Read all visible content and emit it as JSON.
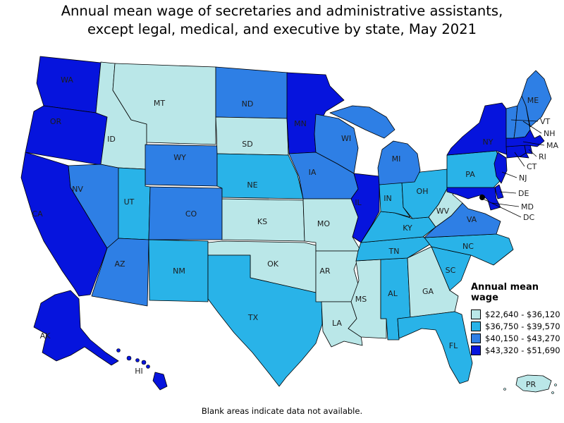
{
  "title": {
    "line1": "Annual mean wage of secretaries and administrative assistants,",
    "line2": "except legal, medical, and executive by state, May 2021"
  },
  "legend": {
    "title": "Annual mean wage",
    "classes": [
      {
        "label": "$22,640 - $36,120",
        "color": "#bae7e8"
      },
      {
        "label": "$36,750 - $39,570",
        "color": "#29b3e8"
      },
      {
        "label": "$40,150 - $43,270",
        "color": "#2e7fe5"
      },
      {
        "label": "$43,320 - $51,690",
        "color": "#0614dd"
      }
    ]
  },
  "footnote": "Blank areas indicate data not available.",
  "map": {
    "border_color": "#000000",
    "dc_marker_color": "#000000",
    "states": [
      {
        "abbr": "WA",
        "label": "WA",
        "category": 3
      },
      {
        "abbr": "OR",
        "label": "OR",
        "category": 3
      },
      {
        "abbr": "CA",
        "label": "CA",
        "category": 3
      },
      {
        "abbr": "NV",
        "label": "NV",
        "category": 2
      },
      {
        "abbr": "ID",
        "label": "ID",
        "category": 0
      },
      {
        "abbr": "MT",
        "label": "MT",
        "category": 0
      },
      {
        "abbr": "WY",
        "label": "WY",
        "category": 2
      },
      {
        "abbr": "UT",
        "label": "UT",
        "category": 1
      },
      {
        "abbr": "CO",
        "label": "CO",
        "category": 2
      },
      {
        "abbr": "AZ",
        "label": "AZ",
        "category": 2
      },
      {
        "abbr": "NM",
        "label": "NM",
        "category": 1
      },
      {
        "abbr": "ND",
        "label": "ND",
        "category": 2
      },
      {
        "abbr": "SD",
        "label": "SD",
        "category": 0
      },
      {
        "abbr": "NE",
        "label": "NE",
        "category": 1
      },
      {
        "abbr": "KS",
        "label": "KS",
        "category": 0
      },
      {
        "abbr": "OK",
        "label": "OK",
        "category": 0
      },
      {
        "abbr": "TX",
        "label": "TX",
        "category": 1
      },
      {
        "abbr": "MN",
        "label": "MN",
        "category": 3
      },
      {
        "abbr": "IA",
        "label": "IA",
        "category": 2
      },
      {
        "abbr": "MO",
        "label": "MO",
        "category": 0
      },
      {
        "abbr": "AR",
        "label": "AR",
        "category": 0
      },
      {
        "abbr": "LA",
        "label": "LA",
        "category": 0
      },
      {
        "abbr": "WI",
        "label": "WI",
        "category": 2
      },
      {
        "abbr": "IL",
        "label": "IL",
        "category": 3
      },
      {
        "abbr": "MS",
        "label": "MS",
        "category": 0
      },
      {
        "abbr": "AL",
        "label": "AL",
        "category": 1
      },
      {
        "abbr": "TN",
        "label": "TN",
        "category": 1
      },
      {
        "abbr": "KY",
        "label": "KY",
        "category": 1
      },
      {
        "abbr": "IN",
        "label": "IN",
        "category": 1
      },
      {
        "abbr": "OH",
        "label": "OH",
        "category": 1
      },
      {
        "abbr": "MI",
        "label": "MI",
        "category": 2
      },
      {
        "abbr": "GA",
        "label": "GA",
        "category": 0
      },
      {
        "abbr": "FL",
        "label": "FL",
        "category": 1
      },
      {
        "abbr": "SC",
        "label": "SC",
        "category": 1
      },
      {
        "abbr": "NC",
        "label": "NC",
        "category": 1
      },
      {
        "abbr": "VA",
        "label": "VA",
        "category": 2
      },
      {
        "abbr": "WV",
        "label": "WV",
        "category": 0
      },
      {
        "abbr": "PA",
        "label": "PA",
        "category": 1
      },
      {
        "abbr": "NY",
        "label": "NY",
        "category": 3
      },
      {
        "abbr": "NJ",
        "label": "NJ",
        "category": 3
      },
      {
        "abbr": "CT",
        "label": "CT",
        "category": 3
      },
      {
        "abbr": "RI",
        "label": "RI",
        "category": 3
      },
      {
        "abbr": "MA",
        "label": "MA",
        "category": 3
      },
      {
        "abbr": "VT",
        "label": "VT",
        "category": 2
      },
      {
        "abbr": "NH",
        "label": "NH",
        "category": 2
      },
      {
        "abbr": "ME",
        "label": "ME",
        "category": 2
      },
      {
        "abbr": "DE",
        "label": "DE",
        "category": 3
      },
      {
        "abbr": "MD",
        "label": "MD",
        "category": 3
      },
      {
        "abbr": "DC",
        "label": "DC",
        "category": 3
      },
      {
        "abbr": "AK",
        "label": "AK",
        "category": 3
      },
      {
        "abbr": "HI",
        "label": "HI",
        "category": 3
      },
      {
        "abbr": "PR",
        "label": "PR",
        "category": 0
      }
    ]
  }
}
